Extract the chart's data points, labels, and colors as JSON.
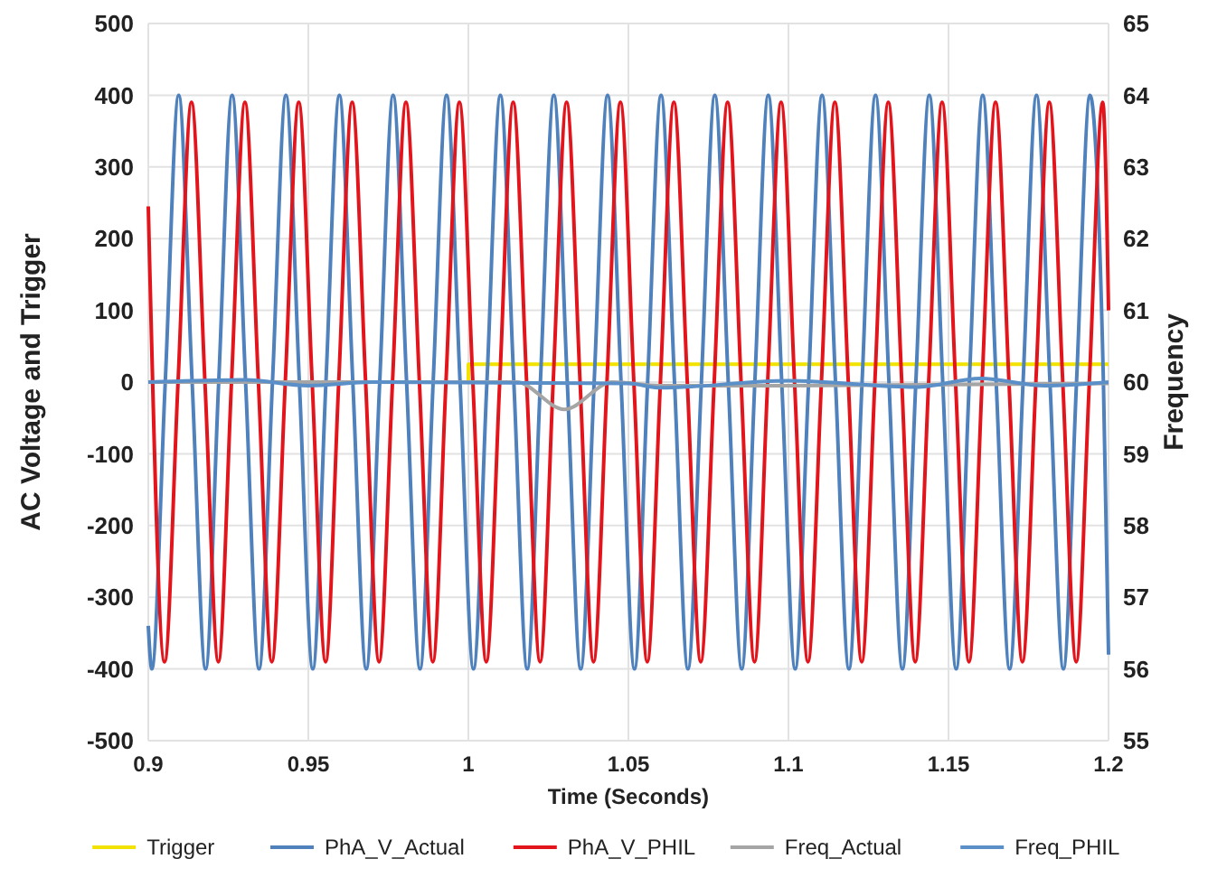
{
  "chart_data": {
    "type": "line",
    "xlabel": "Time (Seconds)",
    "ylabel": "AC Voltage and Trigger",
    "y2label": "Frequency",
    "xlim": [
      0.9,
      1.2
    ],
    "xticks": [
      0.9,
      0.95,
      1,
      1.05,
      1.1,
      1.15,
      1.2
    ],
    "ylim": [
      -500,
      500
    ],
    "yticks": [
      -500,
      -400,
      -300,
      -200,
      -100,
      0,
      100,
      200,
      300,
      400,
      500
    ],
    "y2lim": [
      55,
      65
    ],
    "y2ticks": [
      55,
      56,
      57,
      58,
      59,
      60,
      61,
      62,
      63,
      64,
      65
    ],
    "grid": true,
    "legend": "bottom",
    "series": [
      {
        "name": "Trigger",
        "color": "#f2e200",
        "x": [
          0.9,
          1,
          1,
          1.2
        ],
        "values": [
          0,
          0,
          25,
          25
        ]
      },
      {
        "name": "PhA_V_Actual",
        "color": "#4f81bd",
        "x": [
          0.9,
          0.9011,
          0.9053,
          0.9095,
          0.9137,
          0.9179,
          0.922,
          0.9262,
          0.9304,
          0.9346,
          0.9388,
          0.943,
          0.9472,
          0.9514,
          0.9555,
          0.9597,
          0.9639,
          0.9681,
          0.9723,
          0.9765,
          0.9807,
          0.9849,
          0.989,
          0.9932,
          0.9974,
          1.0016,
          1.0058,
          1.01,
          1.0142,
          1.0184,
          1.0225,
          1.0267,
          1.0309,
          1.0351,
          1.0393,
          1.0435,
          1.0477,
          1.0519,
          1.056,
          1.0602,
          1.0644,
          1.0686,
          1.0728,
          1.077,
          1.0812,
          1.0854,
          1.0895,
          1.0937,
          1.0979,
          1.1021,
          1.1063,
          1.1105,
          1.1147,
          1.1189,
          1.123,
          1.1272,
          1.1314,
          1.1356,
          1.1398,
          1.144,
          1.1482,
          1.1524,
          1.1565,
          1.1607,
          1.1649,
          1.1691,
          1.1733,
          1.1775,
          1.1817,
          1.1859,
          1.19,
          1.1942,
          1.1984,
          1.2
        ],
        "values": [
          -340,
          -400,
          0,
          400,
          0,
          -400,
          0,
          400,
          0,
          -400,
          0,
          400,
          0,
          -400,
          0,
          400,
          0,
          -400,
          0,
          400,
          0,
          -400,
          0,
          400,
          0,
          -400,
          0,
          400,
          0,
          -400,
          0,
          400,
          0,
          -400,
          0,
          400,
          0,
          -400,
          0,
          400,
          0,
          -400,
          0,
          400,
          0,
          -400,
          0,
          400,
          0,
          -400,
          0,
          400,
          0,
          -400,
          0,
          400,
          0,
          -400,
          0,
          400,
          0,
          -400,
          0,
          400,
          0,
          -400,
          0,
          400,
          0,
          -400,
          0,
          400,
          0,
          -380
        ]
      },
      {
        "name": "PhA_V_PHIL",
        "color": "#e3151c",
        "x": [
          0.9,
          0.9051,
          0.9093,
          0.9135,
          0.9177,
          0.9219,
          0.926,
          0.9302,
          0.9344,
          0.9386,
          0.9428,
          0.947,
          0.9512,
          0.9554,
          0.9595,
          0.9637,
          0.9679,
          0.9721,
          0.9763,
          0.9805,
          0.9847,
          0.9889,
          0.993,
          0.9972,
          1.0014,
          1.0056,
          1.0098,
          1.014,
          1.0182,
          1.0224,
          1.0265,
          1.0307,
          1.0349,
          1.0391,
          1.0433,
          1.0475,
          1.0517,
          1.0559,
          1.06,
          1.0642,
          1.0684,
          1.0726,
          1.0768,
          1.081,
          1.0852,
          1.0894,
          1.0935,
          1.0977,
          1.1019,
          1.1061,
          1.1103,
          1.1145,
          1.1187,
          1.1229,
          1.127,
          1.1312,
          1.1354,
          1.1396,
          1.1438,
          1.148,
          1.1522,
          1.1564,
          1.1605,
          1.1647,
          1.1689,
          1.1731,
          1.1773,
          1.1815,
          1.1857,
          1.1899,
          1.194,
          1.1982,
          1.2
        ],
        "values": [
          245,
          -390,
          0,
          390,
          0,
          -390,
          0,
          390,
          0,
          -390,
          0,
          390,
          0,
          -390,
          0,
          390,
          0,
          -390,
          0,
          390,
          0,
          -390,
          0,
          390,
          0,
          -390,
          0,
          390,
          0,
          -390,
          0,
          390,
          0,
          -390,
          0,
          390,
          0,
          -390,
          0,
          390,
          0,
          -390,
          0,
          390,
          0,
          -390,
          0,
          390,
          0,
          -390,
          0,
          390,
          0,
          -390,
          0,
          390,
          0,
          -390,
          0,
          390,
          0,
          -390,
          0,
          390,
          0,
          -390,
          0,
          390,
          0,
          -390,
          0,
          390,
          100
        ]
      },
      {
        "name": "Freq_Actual",
        "color": "#a5a5a5",
        "axis": "y2",
        "x": [
          0.9,
          1.015,
          1.03,
          1.045,
          1.06,
          1.1,
          1.2
        ],
        "values": [
          60,
          60,
          59.62,
          60,
          59.95,
          59.95,
          59.98
        ]
      },
      {
        "name": "Freq_PHIL",
        "color": "#5b8fc7",
        "axis": "y2",
        "x": [
          0.9,
          0.93,
          0.95,
          0.97,
          1.05,
          1.06,
          1.1,
          1.14,
          1.16,
          1.18,
          1.2
        ],
        "values": [
          60,
          60.03,
          59.95,
          60,
          59.98,
          59.92,
          60.02,
          59.93,
          60.05,
          59.95,
          60
        ]
      }
    ]
  }
}
